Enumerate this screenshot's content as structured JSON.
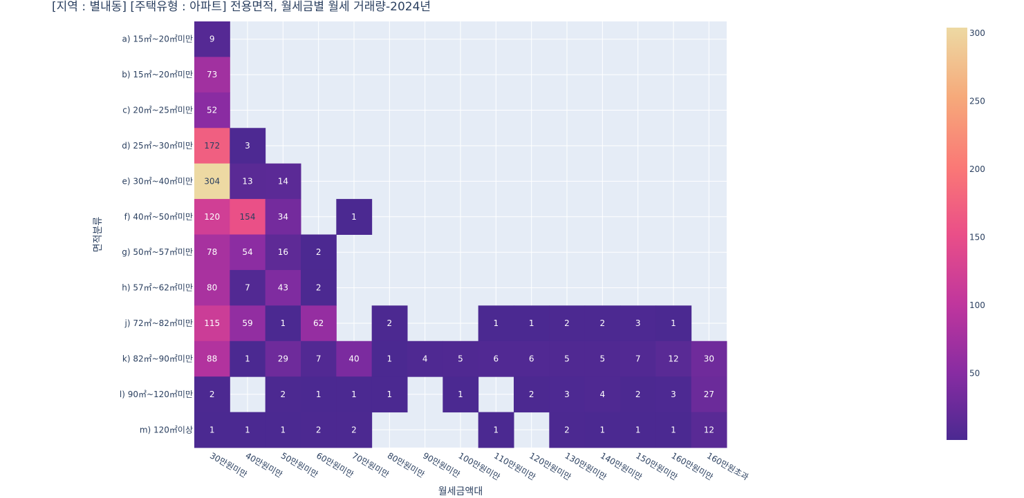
{
  "chart_data": {
    "type": "heatmap",
    "title": "[지역 : 별내동] [주택유형 : 아파트] 전용면적, 월세금별 월세 거래량-2024년",
    "xlabel": "월세금액대",
    "ylabel": "면적분류",
    "x_categories": [
      "30만원미만",
      "40만원미만",
      "50만원미만",
      "60만원미만",
      "70만원미만",
      "80만원미만",
      "90만원미만",
      "100만원미만",
      "110만원미만",
      "120만원미만",
      "130만원미만",
      "140만원미만",
      "150만원미만",
      "160만원미만",
      "160만원초과"
    ],
    "y_categories": [
      "a) 15㎡~20㎡미만",
      "b) 15㎡~20㎡미만",
      "c) 20㎡~25㎡미만",
      "d) 25㎡~30㎡미만",
      "e) 30㎡~40㎡미만",
      "f) 40㎡~50㎡미만",
      "g) 50㎡~57㎡미만",
      "h) 57㎡~62㎡미만",
      "j) 72㎡~82㎡미만",
      "k) 82㎡~90㎡미만",
      "l) 90㎡~120㎡미만",
      "m) 120㎡이상"
    ],
    "values": [
      [
        9,
        null,
        null,
        null,
        null,
        null,
        null,
        null,
        null,
        null,
        null,
        null,
        null,
        null,
        null
      ],
      [
        73,
        null,
        null,
        null,
        null,
        null,
        null,
        null,
        null,
        null,
        null,
        null,
        null,
        null,
        null
      ],
      [
        52,
        null,
        null,
        null,
        null,
        null,
        null,
        null,
        null,
        null,
        null,
        null,
        null,
        null,
        null
      ],
      [
        172,
        3,
        null,
        null,
        null,
        null,
        null,
        null,
        null,
        null,
        null,
        null,
        null,
        null,
        null
      ],
      [
        304,
        13,
        14,
        null,
        null,
        null,
        null,
        null,
        null,
        null,
        null,
        null,
        null,
        null,
        null
      ],
      [
        120,
        154,
        34,
        null,
        1,
        null,
        null,
        null,
        null,
        null,
        null,
        null,
        null,
        null,
        null
      ],
      [
        78,
        54,
        16,
        2,
        null,
        null,
        null,
        null,
        null,
        null,
        null,
        null,
        null,
        null,
        null
      ],
      [
        80,
        7,
        43,
        2,
        null,
        null,
        null,
        null,
        null,
        null,
        null,
        null,
        null,
        null,
        null
      ],
      [
        115,
        59,
        1,
        62,
        null,
        2,
        null,
        null,
        1,
        1,
        2,
        2,
        3,
        1,
        null
      ],
      [
        88,
        1,
        29,
        7,
        40,
        1,
        4,
        5,
        6,
        6,
        5,
        5,
        7,
        12,
        30
      ],
      [
        2,
        null,
        2,
        1,
        1,
        1,
        null,
        1,
        null,
        2,
        3,
        4,
        2,
        3,
        27
      ],
      [
        1,
        1,
        1,
        2,
        2,
        null,
        null,
        null,
        1,
        null,
        2,
        1,
        1,
        1,
        12
      ]
    ],
    "zrange": [
      1,
      304
    ],
    "colorscale": "plasma-like (dark purple to pale yellow)",
    "colorbar_ticks": [
      50,
      100,
      150,
      200,
      250,
      300
    ],
    "legend_position": "right",
    "grid": true
  },
  "colors": {
    "plot_background": "#e5ecf6",
    "grid": "#ffffff",
    "text": "#2a3f5f"
  }
}
